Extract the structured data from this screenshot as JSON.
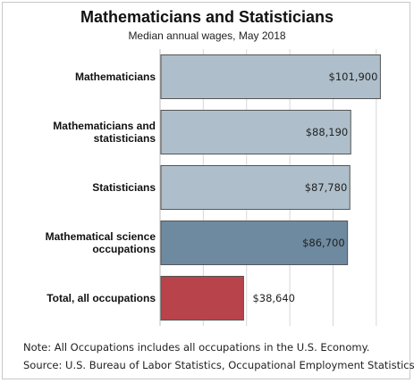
{
  "chart_data": {
    "type": "bar",
    "orientation": "horizontal",
    "title": "Mathematicians and Statisticians",
    "subtitle": "Median annual wages, May 2018",
    "categories": [
      "Mathematicians",
      "Mathematicians and statisticians",
      "Statisticians",
      "Mathematical science occupations",
      "Total, all occupations"
    ],
    "values": [
      101900,
      88190,
      87780,
      86700,
      38640
    ],
    "value_labels": [
      "$101,900",
      "$88,190",
      "$87,780",
      "$86,700",
      "$38,640"
    ],
    "bar_colors": [
      "#aebfcb",
      "#aebfcb",
      "#aebfcb",
      "#6e8aa1",
      "#b8434a"
    ],
    "xlim": [
      0,
      110000
    ],
    "grid": true,
    "legend": "none"
  },
  "notes": {
    "note": "Note: All Occupations includes all occupations in the U.S. Economy.",
    "source": "Source: U.S. Bureau of Labor Statistics, Occupational Employment Statistics"
  }
}
